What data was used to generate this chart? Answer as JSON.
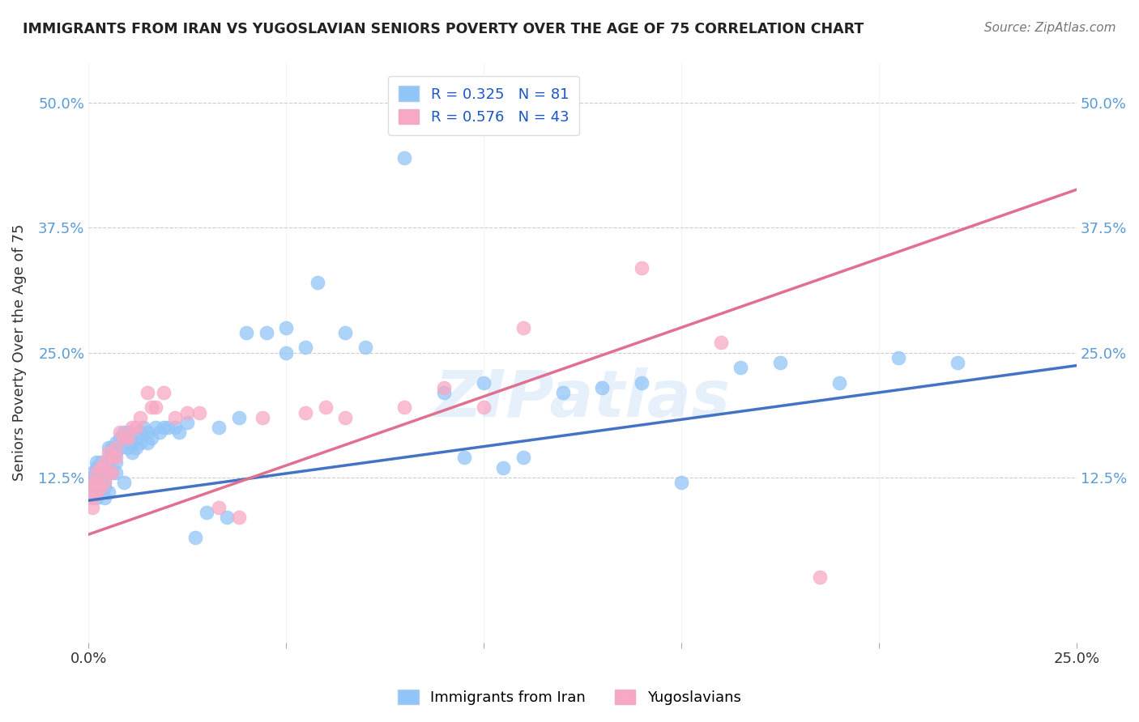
{
  "title": "IMMIGRANTS FROM IRAN VS YUGOSLAVIAN SENIORS POVERTY OVER THE AGE OF 75 CORRELATION CHART",
  "source": "Source: ZipAtlas.com",
  "ylabel": "Seniors Poverty Over the Age of 75",
  "xlim": [
    0.0,
    0.25
  ],
  "ylim": [
    -0.04,
    0.54
  ],
  "xtick_positions": [
    0.0,
    0.05,
    0.1,
    0.15,
    0.2,
    0.25
  ],
  "xtick_labels": [
    "0.0%",
    "",
    "",
    "",
    "",
    "25.0%"
  ],
  "ytick_positions": [
    0.125,
    0.25,
    0.375,
    0.5
  ],
  "ytick_labels": [
    "12.5%",
    "25.0%",
    "37.5%",
    "50.0%"
  ],
  "blue_color": "#92C5F7",
  "pink_color": "#F7A8C4",
  "blue_line_color": "#4472C4",
  "pink_line_color": "#E07090",
  "blue_R": 0.325,
  "blue_N": 81,
  "pink_R": 0.576,
  "pink_N": 43,
  "blue_intercept": 0.102,
  "blue_slope": 0.54,
  "pink_intercept": 0.068,
  "pink_slope": 1.38,
  "watermark": "ZIPatlas",
  "legend_label_blue": "Immigrants from Iran",
  "legend_label_pink": "Yugoslavians",
  "blue_x": [
    0.001,
    0.001,
    0.001,
    0.001,
    0.001,
    0.002,
    0.002,
    0.002,
    0.002,
    0.002,
    0.003,
    0.003,
    0.003,
    0.003,
    0.004,
    0.004,
    0.004,
    0.004,
    0.005,
    0.005,
    0.005,
    0.005,
    0.006,
    0.006,
    0.006,
    0.007,
    0.007,
    0.007,
    0.007,
    0.008,
    0.008,
    0.009,
    0.009,
    0.01,
    0.01,
    0.01,
    0.011,
    0.011,
    0.012,
    0.012,
    0.013,
    0.013,
    0.014,
    0.015,
    0.015,
    0.016,
    0.017,
    0.018,
    0.019,
    0.02,
    0.022,
    0.023,
    0.025,
    0.027,
    0.03,
    0.033,
    0.035,
    0.038,
    0.04,
    0.045,
    0.05,
    0.05,
    0.055,
    0.058,
    0.065,
    0.07,
    0.08,
    0.09,
    0.095,
    0.1,
    0.105,
    0.11,
    0.12,
    0.13,
    0.14,
    0.15,
    0.165,
    0.175,
    0.19,
    0.205,
    0.22
  ],
  "blue_y": [
    0.125,
    0.13,
    0.12,
    0.115,
    0.11,
    0.14,
    0.135,
    0.125,
    0.115,
    0.105,
    0.14,
    0.135,
    0.125,
    0.115,
    0.13,
    0.12,
    0.115,
    0.105,
    0.155,
    0.145,
    0.135,
    0.11,
    0.155,
    0.145,
    0.13,
    0.16,
    0.15,
    0.14,
    0.13,
    0.165,
    0.155,
    0.17,
    0.12,
    0.17,
    0.165,
    0.155,
    0.16,
    0.15,
    0.165,
    0.155,
    0.17,
    0.16,
    0.175,
    0.17,
    0.16,
    0.165,
    0.175,
    0.17,
    0.175,
    0.175,
    0.175,
    0.17,
    0.18,
    0.065,
    0.09,
    0.175,
    0.085,
    0.185,
    0.27,
    0.27,
    0.25,
    0.275,
    0.255,
    0.32,
    0.27,
    0.255,
    0.445,
    0.21,
    0.145,
    0.22,
    0.135,
    0.145,
    0.21,
    0.215,
    0.22,
    0.12,
    0.235,
    0.24,
    0.22,
    0.245,
    0.24
  ],
  "pink_x": [
    0.001,
    0.001,
    0.001,
    0.001,
    0.002,
    0.002,
    0.002,
    0.003,
    0.003,
    0.004,
    0.004,
    0.005,
    0.005,
    0.006,
    0.006,
    0.007,
    0.007,
    0.008,
    0.009,
    0.01,
    0.011,
    0.012,
    0.013,
    0.015,
    0.016,
    0.017,
    0.019,
    0.022,
    0.025,
    0.028,
    0.033,
    0.038,
    0.044,
    0.055,
    0.06,
    0.065,
    0.08,
    0.09,
    0.1,
    0.11,
    0.14,
    0.16,
    0.185
  ],
  "pink_y": [
    0.12,
    0.115,
    0.105,
    0.095,
    0.13,
    0.12,
    0.11,
    0.135,
    0.115,
    0.14,
    0.12,
    0.15,
    0.13,
    0.145,
    0.13,
    0.155,
    0.145,
    0.17,
    0.165,
    0.165,
    0.175,
    0.175,
    0.185,
    0.21,
    0.195,
    0.195,
    0.21,
    0.185,
    0.19,
    0.19,
    0.095,
    0.085,
    0.185,
    0.19,
    0.195,
    0.185,
    0.195,
    0.215,
    0.195,
    0.275,
    0.335,
    0.26,
    0.025
  ]
}
